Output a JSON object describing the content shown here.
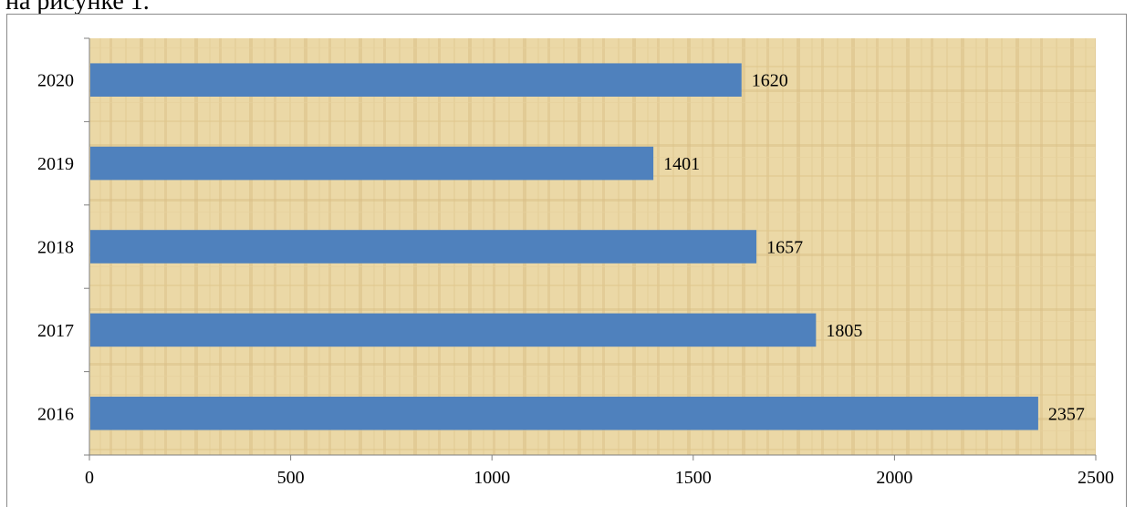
{
  "page": {
    "caption_fragment": "на рисунке 1."
  },
  "colors": {
    "bar": "#4f81bd",
    "plot_bg": "#ead7a4",
    "plot_bg_dark": "#d9bf82",
    "axis": "#7f7f7f"
  },
  "chart_data": {
    "type": "bar",
    "orientation": "horizontal",
    "categories": [
      "2016",
      "2017",
      "2018",
      "2019",
      "2020"
    ],
    "values": [
      2357,
      1805,
      1657,
      1401,
      1620
    ],
    "data_labels": [
      "2357",
      "1805",
      "1657",
      "1401",
      "1620"
    ],
    "xlim": [
      0,
      2500
    ],
    "x_ticks": [
      "0",
      "500",
      "1000",
      "1500",
      "2000",
      "2500"
    ],
    "x_tick_values": [
      0,
      500,
      1000,
      1500,
      2000,
      2500
    ],
    "grid": false,
    "legend": "none",
    "title": "",
    "xlabel": "",
    "ylabel": ""
  }
}
